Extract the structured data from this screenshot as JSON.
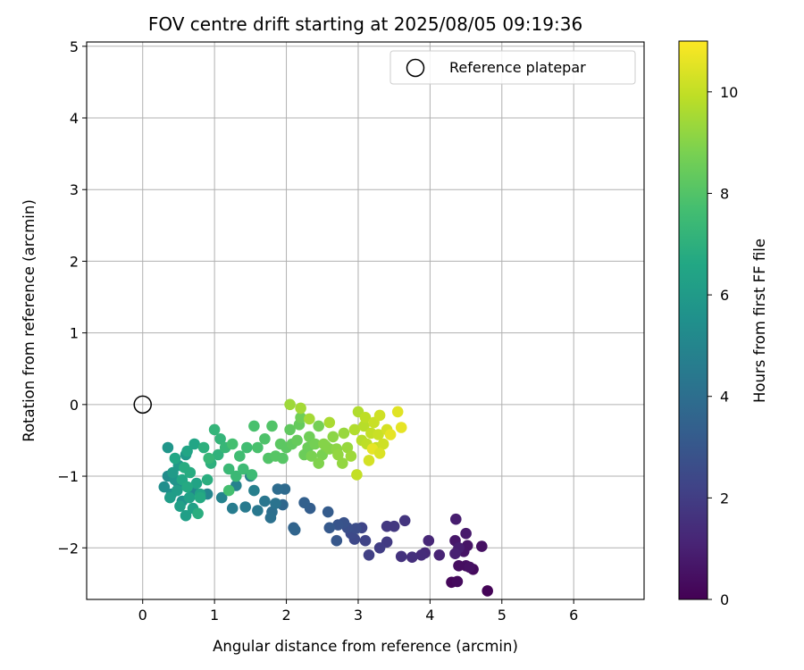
{
  "chart_data": {
    "type": "scatter",
    "title": "FOV centre drift starting at 2025/08/05 09:19:36",
    "xlabel": "Angular distance from reference (arcmin)",
    "ylabel": "Rotation from reference (arcmin)",
    "xlim": [
      -0.78,
      6.98
    ],
    "ylim": [
      -2.72,
      5.06
    ],
    "x_ticks": [
      0,
      1,
      2,
      3,
      4,
      5,
      6
    ],
    "y_ticks": [
      -2,
      -1,
      0,
      1,
      2,
      3,
      4,
      5
    ],
    "x_tick_labels": [
      "0",
      "1",
      "2",
      "3",
      "4",
      "5",
      "6"
    ],
    "y_tick_labels": [
      "−2",
      "−1",
      "0",
      "1",
      "2",
      "3",
      "4",
      "5"
    ],
    "grid": true,
    "legend": {
      "placement": "upper right",
      "entries": [
        "Reference platepar"
      ]
    },
    "reference_point": {
      "x": 0,
      "y": 0,
      "label": "Reference platepar"
    },
    "colorbar": {
      "label": "Hours from first FF file",
      "colormap": "viridis",
      "range": [
        0,
        11
      ],
      "ticks": [
        0,
        2,
        4,
        6,
        8,
        10
      ],
      "tick_labels": [
        "0",
        "2",
        "4",
        "6",
        "8",
        "10"
      ]
    },
    "points": [
      [
        4.8,
        -2.6,
        0.1
      ],
      [
        4.3,
        -2.48,
        0.2
      ],
      [
        4.38,
        -2.47,
        0.3
      ],
      [
        4.6,
        -2.3,
        0.3
      ],
      [
        4.5,
        -2.25,
        0.4
      ],
      [
        4.4,
        -2.25,
        0.4
      ],
      [
        4.55,
        -2.27,
        0.5
      ],
      [
        4.72,
        -1.98,
        0.5
      ],
      [
        4.52,
        -1.97,
        0.6
      ],
      [
        4.47,
        -2.05,
        0.6
      ],
      [
        4.35,
        -1.9,
        0.7
      ],
      [
        4.5,
        -1.8,
        0.8
      ],
      [
        4.36,
        -1.6,
        0.9
      ],
      [
        4.4,
        -2.0,
        0.9
      ],
      [
        4.35,
        -2.08,
        1.0
      ],
      [
        4.13,
        -2.1,
        1.1
      ],
      [
        3.98,
        -1.9,
        1.2
      ],
      [
        3.93,
        -2.07,
        1.3
      ],
      [
        3.88,
        -2.1,
        1.4
      ],
      [
        3.75,
        -2.13,
        1.5
      ],
      [
        3.6,
        -2.12,
        1.6
      ],
      [
        3.65,
        -1.62,
        1.7
      ],
      [
        3.5,
        -1.7,
        1.8
      ],
      [
        3.4,
        -1.7,
        1.8
      ],
      [
        3.4,
        -1.92,
        1.9
      ],
      [
        3.3,
        -2.0,
        2.0
      ],
      [
        3.15,
        -2.1,
        2.1
      ],
      [
        3.1,
        -1.9,
        2.2
      ],
      [
        3.05,
        -1.72,
        2.3
      ],
      [
        2.95,
        -1.88,
        2.4
      ],
      [
        2.9,
        -1.8,
        2.5
      ],
      [
        2.97,
        -1.73,
        2.6
      ],
      [
        2.85,
        -1.72,
        2.7
      ],
      [
        2.8,
        -1.65,
        2.8
      ],
      [
        2.72,
        -1.68,
        2.9
      ],
      [
        2.7,
        -1.9,
        3.0
      ],
      [
        2.6,
        -1.72,
        3.1
      ],
      [
        2.58,
        -1.5,
        3.2
      ],
      [
        2.33,
        -1.45,
        3.3
      ],
      [
        2.25,
        -1.37,
        3.4
      ],
      [
        2.1,
        -1.72,
        3.5
      ],
      [
        2.12,
        -1.75,
        3.6
      ],
      [
        1.95,
        -1.4,
        3.7
      ],
      [
        1.98,
        -1.18,
        3.8
      ],
      [
        1.88,
        -1.18,
        3.9
      ],
      [
        1.8,
        -1.5,
        4.0
      ],
      [
        1.78,
        -1.58,
        4.1
      ],
      [
        1.85,
        -1.38,
        4.2
      ],
      [
        1.7,
        -1.35,
        4.3
      ],
      [
        1.6,
        -1.48,
        4.4
      ],
      [
        1.43,
        -1.43,
        4.5
      ],
      [
        1.25,
        -1.45,
        4.6
      ],
      [
        1.5,
        -1.0,
        4.6
      ],
      [
        1.55,
        -1.2,
        4.7
      ],
      [
        1.3,
        -1.13,
        4.8
      ],
      [
        1.1,
        -1.3,
        4.9
      ],
      [
        0.9,
        -1.25,
        5.0
      ],
      [
        0.7,
        -1.2,
        5.1
      ],
      [
        0.5,
        -1.1,
        5.2
      ],
      [
        0.35,
        -1.0,
        5.3
      ],
      [
        0.3,
        -1.15,
        5.4
      ],
      [
        0.4,
        -1.25,
        5.5
      ],
      [
        0.55,
        -1.35,
        5.6
      ],
      [
        0.45,
        -1.05,
        5.7
      ],
      [
        0.35,
        -0.6,
        5.8
      ],
      [
        0.6,
        -0.7,
        5.9
      ],
      [
        0.5,
        -0.85,
        6.0
      ],
      [
        0.42,
        -0.95,
        6.0
      ],
      [
        0.48,
        -1.2,
        6.1
      ],
      [
        0.38,
        -1.3,
        6.1
      ],
      [
        0.52,
        -1.42,
        6.2
      ],
      [
        0.6,
        -1.55,
        6.2
      ],
      [
        0.7,
        -1.45,
        6.3
      ],
      [
        0.65,
        -1.3,
        6.3
      ],
      [
        0.75,
        -1.1,
        6.4
      ],
      [
        0.8,
        -1.25,
        6.4
      ],
      [
        0.62,
        -0.65,
        6.5
      ],
      [
        0.72,
        -0.55,
        6.5
      ],
      [
        0.45,
        -0.75,
        6.6
      ],
      [
        0.55,
        -1.05,
        6.6
      ],
      [
        0.8,
        -1.3,
        6.7
      ],
      [
        0.62,
        -1.15,
        6.7
      ],
      [
        0.66,
        -0.95,
        6.8
      ],
      [
        0.58,
        -0.88,
        6.8
      ],
      [
        0.77,
        -1.52,
        6.9
      ],
      [
        0.9,
        -1.05,
        6.9
      ],
      [
        0.95,
        -0.82,
        7.0
      ],
      [
        0.85,
        -0.6,
        7.0
      ],
      [
        1.05,
        -0.7,
        7.1
      ],
      [
        1.0,
        -0.35,
        7.2
      ],
      [
        1.08,
        -0.48,
        7.2
      ],
      [
        1.15,
        -0.6,
        7.3
      ],
      [
        0.92,
        -0.75,
        7.3
      ],
      [
        1.2,
        -0.9,
        7.4
      ],
      [
        1.3,
        -1.0,
        7.4
      ],
      [
        1.4,
        -0.9,
        7.5
      ],
      [
        1.52,
        -0.98,
        7.5
      ],
      [
        1.35,
        -0.72,
        7.6
      ],
      [
        1.45,
        -0.6,
        7.6
      ],
      [
        1.2,
        -1.2,
        7.7
      ],
      [
        1.25,
        -0.55,
        7.7
      ],
      [
        1.55,
        -0.3,
        7.8
      ],
      [
        1.6,
        -0.6,
        7.8
      ],
      [
        1.7,
        -0.48,
        7.9
      ],
      [
        1.8,
        -0.3,
        8.0
      ],
      [
        1.75,
        -0.75,
        8.0
      ],
      [
        1.85,
        -0.72,
        8.1
      ],
      [
        1.95,
        -0.75,
        8.1
      ],
      [
        1.92,
        -0.55,
        8.2
      ],
      [
        2.0,
        -0.6,
        8.2
      ],
      [
        2.05,
        -0.35,
        8.3
      ],
      [
        2.08,
        -0.55,
        8.3
      ],
      [
        2.15,
        -0.5,
        8.4
      ],
      [
        2.18,
        -0.28,
        8.4
      ],
      [
        2.25,
        -0.7,
        8.5
      ],
      [
        2.3,
        -0.6,
        8.5
      ],
      [
        2.2,
        -0.18,
        8.6
      ],
      [
        2.32,
        -0.45,
        8.6
      ],
      [
        2.4,
        -0.55,
        8.7
      ],
      [
        2.45,
        -0.3,
        8.7
      ],
      [
        2.35,
        -0.72,
        8.8
      ],
      [
        2.5,
        -0.7,
        8.8
      ],
      [
        2.55,
        -0.58,
        8.9
      ],
      [
        2.45,
        -0.82,
        8.9
      ],
      [
        2.6,
        -0.62,
        9.0
      ],
      [
        2.52,
        -0.55,
        9.0
      ],
      [
        2.65,
        -0.45,
        9.1
      ],
      [
        2.7,
        -0.62,
        9.1
      ],
      [
        2.72,
        -0.7,
        9.2
      ],
      [
        2.78,
        -0.82,
        9.2
      ],
      [
        2.8,
        -0.4,
        9.3
      ],
      [
        2.85,
        -0.6,
        9.3
      ],
      [
        2.9,
        -0.72,
        9.4
      ],
      [
        2.05,
        0.0,
        9.4
      ],
      [
        2.2,
        -0.05,
        9.5
      ],
      [
        2.32,
        -0.2,
        9.5
      ],
      [
        2.6,
        -0.25,
        9.6
      ],
      [
        2.95,
        -0.35,
        9.7
      ],
      [
        3.0,
        -0.1,
        9.7
      ],
      [
        3.05,
        -0.5,
        9.8
      ],
      [
        3.08,
        -0.3,
        9.8
      ],
      [
        3.1,
        -0.18,
        9.9
      ],
      [
        3.12,
        -0.55,
        9.9
      ],
      [
        3.18,
        -0.4,
        10.0
      ],
      [
        3.25,
        -0.6,
        10.0
      ],
      [
        2.98,
        -0.98,
        10.0
      ],
      [
        3.22,
        -0.25,
        10.1
      ],
      [
        3.28,
        -0.42,
        10.1
      ],
      [
        3.3,
        -0.15,
        10.2
      ],
      [
        3.35,
        -0.55,
        10.2
      ],
      [
        3.4,
        -0.35,
        10.3
      ],
      [
        3.15,
        -0.78,
        10.3
      ],
      [
        3.55,
        -0.1,
        10.5
      ],
      [
        3.6,
        -0.32,
        10.6
      ],
      [
        3.45,
        -0.42,
        10.6
      ],
      [
        3.2,
        -0.62,
        10.6
      ],
      [
        3.3,
        -0.68,
        10.4
      ]
    ]
  }
}
